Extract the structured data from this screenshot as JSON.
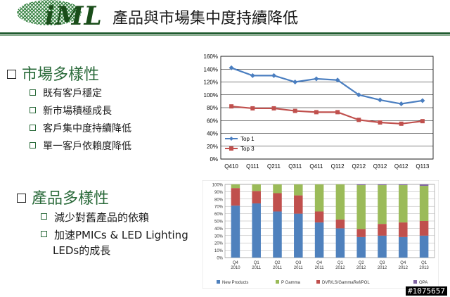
{
  "header": {
    "logo_text": "iML",
    "title": "產品與市場集中度持續降低"
  },
  "section1": {
    "title": "市場多樣性",
    "items": [
      "既有客戶穩定",
      "新市場積極成長",
      "客戶集中度持續降低",
      "單一客戶依賴度降低"
    ]
  },
  "section2": {
    "title": "產品多樣性",
    "items": [
      "減少對舊產品的依賴",
      "加速PMICs & LED Lighting",
      "LEDs的成長"
    ]
  },
  "watermark": "#1075657",
  "colors": {
    "accent": "#1f5a2e",
    "top1": "#4a7ec0",
    "top3": "#c0504d"
  },
  "chart_data": [
    {
      "type": "line",
      "categories": [
        "Q410",
        "Q111",
        "Q211",
        "Q311",
        "Q411",
        "Q112",
        "Q212",
        "Q312",
        "Q412",
        "Q113"
      ],
      "series": [
        {
          "name": "Top 1",
          "values": [
            142,
            130,
            130,
            120,
            125,
            123,
            100,
            92,
            86,
            91
          ]
        },
        {
          "name": "Top 3",
          "values": [
            82,
            79,
            79,
            75,
            73,
            73,
            61,
            57,
            55,
            59
          ]
        }
      ],
      "yticks": [
        "0%",
        "20%",
        "40%",
        "60%",
        "80%",
        "100%",
        "120%",
        "140%",
        "160%"
      ],
      "ylim": [
        0,
        160
      ],
      "legend": "bottom-left",
      "grid": true
    },
    {
      "type": "bar",
      "stacked": true,
      "categories": [
        [
          "Q4",
          "2010"
        ],
        [
          "Q1",
          "2011"
        ],
        [
          "Q2",
          "2011"
        ],
        [
          "Q3",
          "2011"
        ],
        [
          "Q4",
          "2011"
        ],
        [
          "Q1",
          "2012"
        ],
        [
          "Q2",
          "2012"
        ],
        [
          "Q3",
          "2012"
        ],
        [
          "Q4",
          "2012"
        ],
        [
          "Q1",
          "2013"
        ]
      ],
      "series": [
        {
          "name": "OPA",
          "values": [
            0,
            0,
            0,
            0,
            0,
            0,
            1,
            1,
            1,
            2
          ]
        },
        {
          "name": "DVR/LS/GammaRef/POL",
          "values": [
            24,
            17,
            25,
            25,
            15,
            12,
            11,
            16,
            20,
            20
          ]
        },
        {
          "name": "P Gamma",
          "values": [
            5,
            9,
            12,
            15,
            37,
            48,
            60,
            53,
            51,
            48
          ]
        },
        {
          "name": "New Products",
          "values": [
            71,
            74,
            63,
            60,
            48,
            40,
            28,
            30,
            28,
            30
          ]
        }
      ],
      "yticks": [
        "0%",
        "10%",
        "20%",
        "30%",
        "40%",
        "50%",
        "60%",
        "70%",
        "80%",
        "90%",
        "100%"
      ],
      "ylim": [
        0,
        100
      ],
      "legend": "bottom"
    }
  ]
}
